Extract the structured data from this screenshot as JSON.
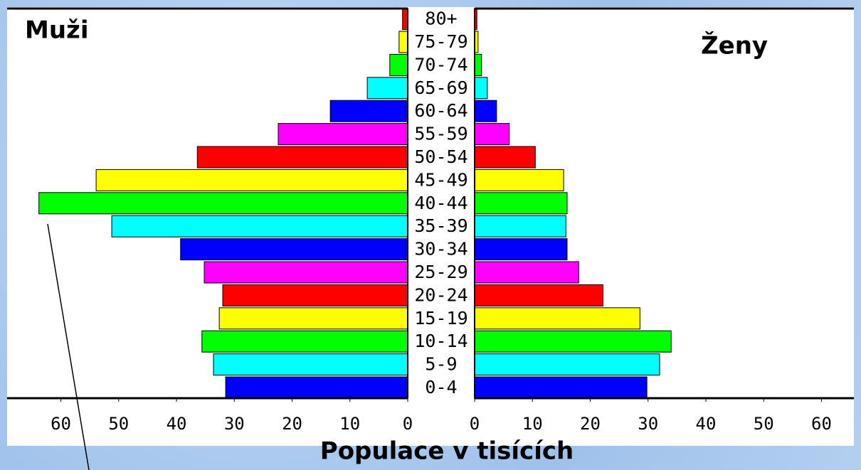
{
  "chart_data": {
    "type": "population-pyramid",
    "xlabel": "Populace v tisících",
    "categories": [
      "0-4",
      "5-9",
      "10-14",
      "15-19",
      "20-24",
      "25-29",
      "30-34",
      "35-39",
      "40-44",
      "45-49",
      "50-54",
      "55-59",
      "60-64",
      "65-69",
      "70-74",
      "75-79",
      "80+"
    ],
    "colors": [
      "#0000ff",
      "#00ffff",
      "#00ff00",
      "#ffff00",
      "#ff0000",
      "#ff00ff",
      "#0000ff",
      "#00ffff",
      "#00ff00",
      "#ffff00",
      "#ff0000",
      "#ff00ff",
      "#0000ff",
      "#00ffff",
      "#00ff00",
      "#ffff00",
      "#ff0000"
    ],
    "series": [
      {
        "name": "Muži",
        "side": "left",
        "values": [
          31.5,
          33.6,
          35.6,
          32.6,
          32.0,
          35.2,
          39.3,
          51.2,
          63.8,
          53.9,
          36.4,
          22.4,
          13.4,
          7.0,
          3.1,
          1.5,
          0.9
        ],
        "xlim": [
          0,
          69.3
        ],
        "xticks": [
          0,
          10,
          20,
          30,
          40,
          50,
          60
        ]
      },
      {
        "name": "Ženy",
        "side": "right",
        "values": [
          29.8,
          32.0,
          34.0,
          28.6,
          22.2,
          18.0,
          16.0,
          15.8,
          16.0,
          15.4,
          10.5,
          6.0,
          3.8,
          2.2,
          1.2,
          0.6,
          0.4
        ],
        "xlim": [
          0,
          65.6
        ],
        "xticks": [
          0,
          10,
          20,
          30,
          40,
          50,
          60
        ]
      }
    ]
  }
}
